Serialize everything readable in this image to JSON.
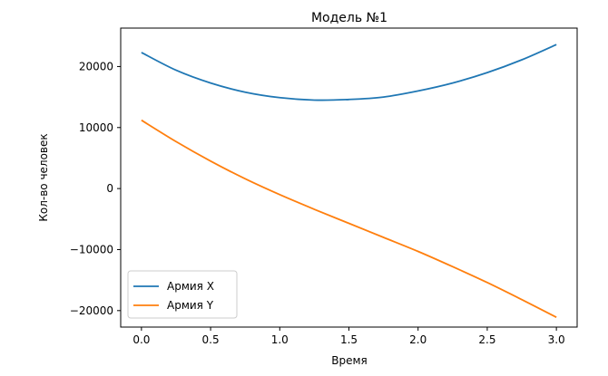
{
  "chart_data": {
    "type": "line",
    "title": "Модель №1",
    "xlabel": "Время",
    "ylabel": "Кол-во человек",
    "xlim": [
      -0.15,
      3.15
    ],
    "ylim": [
      -22700,
      26300
    ],
    "xticks": [
      0.0,
      0.5,
      1.0,
      1.5,
      2.0,
      2.5,
      3.0
    ],
    "xtick_labels": [
      "0.0",
      "0.5",
      "1.0",
      "1.5",
      "2.0",
      "2.5",
      "3.0"
    ],
    "yticks": [
      -20000,
      -10000,
      0,
      10000,
      20000
    ],
    "ytick_labels": [
      "−20000",
      "−10000",
      "0",
      "10000",
      "20000"
    ],
    "grid": false,
    "legend_position": "lower-left",
    "x": [
      0.0,
      0.25,
      0.5,
      0.75,
      1.0,
      1.25,
      1.5,
      1.75,
      2.0,
      2.25,
      2.5,
      2.75,
      3.0
    ],
    "series": [
      {
        "name": "Армия X",
        "color": "#1f77b4",
        "values": [
          22300,
          19400,
          17300,
          15800,
          14900,
          14500,
          14600,
          15000,
          16000,
          17300,
          19000,
          21100,
          23600
        ]
      },
      {
        "name": "Армия Y",
        "color": "#ff7f0e",
        "values": [
          11200,
          7700,
          4500,
          1600,
          -1000,
          -3400,
          -5700,
          -8000,
          -10300,
          -12800,
          -15400,
          -18200,
          -21100
        ]
      }
    ]
  }
}
